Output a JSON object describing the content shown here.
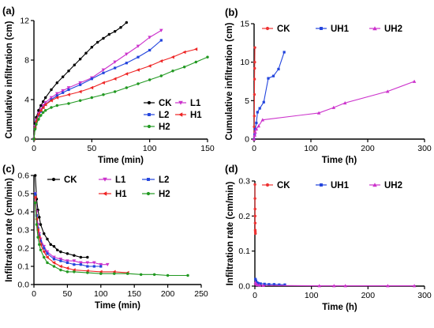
{
  "chart_data": [
    {
      "panel": "(a)",
      "type": "line",
      "xlabel": "Time (min)",
      "ylabel": "Cumulative infiltration (cm)",
      "xlim": [
        0,
        150
      ],
      "ylim": [
        0,
        12
      ],
      "xticks": [
        0,
        50,
        100,
        150
      ],
      "yticks": [
        0,
        4,
        8,
        12
      ],
      "legend": {
        "placement": "bottom-right",
        "columns": 2
      },
      "series": [
        {
          "name": "CK",
          "color": "#000000",
          "marker": "circle",
          "x": [
            0,
            1,
            2,
            4,
            6,
            8,
            10,
            15,
            20,
            25,
            30,
            35,
            40,
            45,
            50,
            55,
            60,
            65,
            70,
            75,
            80
          ],
          "y": [
            0,
            1.6,
            2.2,
            2.9,
            3.4,
            3.8,
            4.2,
            5.0,
            5.7,
            6.3,
            6.9,
            7.5,
            8.1,
            8.7,
            9.3,
            9.8,
            10.2,
            10.6,
            10.9,
            11.3,
            11.8
          ]
        },
        {
          "name": "L1",
          "color": "#cc33cc",
          "marker": "triangle-down",
          "x": [
            0,
            1,
            2,
            4,
            6,
            8,
            10,
            15,
            20,
            25,
            30,
            40,
            50,
            60,
            70,
            80,
            90,
            100,
            110
          ],
          "y": [
            0,
            1.3,
            1.9,
            2.6,
            3.0,
            3.4,
            3.7,
            4.2,
            4.6,
            4.9,
            5.2,
            5.7,
            6.2,
            7.0,
            7.8,
            8.6,
            9.4,
            10.3,
            11.0
          ]
        },
        {
          "name": "L2",
          "color": "#2244dd",
          "marker": "square",
          "x": [
            0,
            1,
            2,
            4,
            6,
            8,
            10,
            15,
            20,
            25,
            30,
            40,
            50,
            60,
            70,
            80,
            90,
            100,
            110
          ],
          "y": [
            0,
            1.2,
            1.8,
            2.4,
            2.8,
            3.2,
            3.5,
            4.0,
            4.4,
            4.7,
            5.0,
            5.5,
            6.1,
            6.7,
            7.2,
            7.7,
            8.3,
            9.0,
            10.0
          ]
        },
        {
          "name": "H1",
          "color": "#ee2222",
          "marker": "triangle-left",
          "x": [
            0,
            1,
            2,
            4,
            6,
            8,
            10,
            15,
            20,
            30,
            40,
            50,
            60,
            70,
            80,
            90,
            100,
            110,
            120,
            130,
            140
          ],
          "y": [
            0,
            1.2,
            1.8,
            2.5,
            2.9,
            3.2,
            3.5,
            3.9,
            4.2,
            4.5,
            4.8,
            5.2,
            5.7,
            6.1,
            6.6,
            7.0,
            7.4,
            7.9,
            8.3,
            8.8,
            9.1
          ]
        },
        {
          "name": "H2",
          "color": "#229922",
          "marker": "circle",
          "x": [
            0,
            1,
            2,
            4,
            6,
            8,
            10,
            15,
            20,
            30,
            40,
            50,
            60,
            70,
            80,
            90,
            100,
            110,
            120,
            130,
            140,
            150
          ],
          "y": [
            0,
            1.0,
            1.5,
            2.0,
            2.4,
            2.7,
            2.9,
            3.2,
            3.4,
            3.6,
            3.9,
            4.2,
            4.5,
            4.8,
            5.2,
            5.6,
            6.0,
            6.4,
            6.9,
            7.3,
            7.8,
            8.3
          ]
        }
      ]
    },
    {
      "panel": "(b)",
      "type": "line",
      "xlabel": "Time (h)",
      "ylabel": "Cumulative infiltration (cm)",
      "xlim": [
        0,
        300
      ],
      "ylim": [
        0,
        15
      ],
      "xticks": [
        0,
        100,
        200,
        300
      ],
      "yticks": [
        0,
        5,
        10,
        15
      ],
      "legend": {
        "placement": "top",
        "columns": 3
      },
      "series": [
        {
          "name": "CK",
          "color": "#ee3333",
          "marker": "circle",
          "x": [
            0,
            0.2,
            0.4,
            0.6,
            0.8,
            1.0,
            1.2,
            1.4
          ],
          "y": [
            0,
            1.6,
            3.0,
            5.8,
            7.8,
            9.2,
            10.0,
            11.9
          ]
        },
        {
          "name": "UH1",
          "color": "#2244dd",
          "marker": "square",
          "x": [
            0,
            1,
            2,
            4,
            6,
            10,
            17,
            25,
            34,
            43,
            53
          ],
          "y": [
            0,
            0.6,
            1.3,
            2.1,
            3.5,
            4.0,
            4.8,
            7.9,
            8.2,
            9.1,
            11.3
          ]
        },
        {
          "name": "UH2",
          "color": "#cc33cc",
          "marker": "triangle-up",
          "x": [
            0,
            1,
            2,
            4,
            8,
            15,
            114,
            140,
            160,
            235,
            282
          ],
          "y": [
            0,
            0.5,
            0.9,
            1.3,
            1.7,
            2.5,
            3.4,
            4.1,
            4.7,
            6.2,
            7.5
          ]
        }
      ]
    },
    {
      "panel": "(c)",
      "type": "line",
      "xlabel": "Time (min)",
      "ylabel": "Infiltration rate (cm/min)",
      "xlim": [
        0,
        250
      ],
      "ylim": [
        0,
        0.6
      ],
      "xticks": [
        0,
        50,
        100,
        150,
        200,
        250
      ],
      "yticks": [
        0.0,
        0.1,
        0.2,
        0.3,
        0.4,
        0.5,
        0.6
      ],
      "legend": {
        "placement": "top-right",
        "columns": 2
      },
      "series": [
        {
          "name": "CK",
          "color": "#000000",
          "marker": "circle",
          "x": [
            2,
            4,
            6,
            8,
            10,
            15,
            20,
            25,
            30,
            35,
            40,
            50,
            60,
            70,
            80
          ],
          "y": [
            0.6,
            0.47,
            0.41,
            0.37,
            0.33,
            0.28,
            0.25,
            0.22,
            0.21,
            0.19,
            0.18,
            0.17,
            0.16,
            0.15,
            0.15
          ]
        },
        {
          "name": "L1",
          "color": "#cc33cc",
          "marker": "triangle-down",
          "x": [
            2,
            4,
            6,
            8,
            10,
            15,
            20,
            30,
            40,
            50,
            60,
            70,
            80,
            90,
            100,
            110
          ],
          "y": [
            0.5,
            0.4,
            0.33,
            0.28,
            0.25,
            0.21,
            0.18,
            0.15,
            0.14,
            0.13,
            0.13,
            0.12,
            0.12,
            0.12,
            0.11,
            0.11
          ]
        },
        {
          "name": "L2",
          "color": "#2244dd",
          "marker": "square",
          "x": [
            2,
            4,
            6,
            8,
            10,
            15,
            20,
            30,
            40,
            50,
            60,
            70,
            80,
            90,
            100
          ],
          "y": [
            0.5,
            0.38,
            0.31,
            0.27,
            0.24,
            0.2,
            0.17,
            0.14,
            0.13,
            0.12,
            0.11,
            0.11,
            0.1,
            0.1,
            0.1
          ]
        },
        {
          "name": "H1",
          "color": "#ee2222",
          "marker": "triangle-left",
          "x": [
            2,
            4,
            6,
            8,
            10,
            15,
            20,
            30,
            40,
            50,
            60,
            80,
            100,
            120,
            140
          ],
          "y": [
            0.48,
            0.36,
            0.3,
            0.26,
            0.22,
            0.18,
            0.15,
            0.12,
            0.1,
            0.09,
            0.08,
            0.075,
            0.07,
            0.07,
            0.065
          ]
        },
        {
          "name": "H2",
          "color": "#229922",
          "marker": "circle",
          "x": [
            2,
            4,
            6,
            8,
            10,
            15,
            20,
            30,
            40,
            50,
            60,
            80,
            100,
            120,
            140,
            160,
            180,
            200,
            230
          ],
          "y": [
            0.45,
            0.33,
            0.26,
            0.22,
            0.19,
            0.15,
            0.12,
            0.1,
            0.08,
            0.07,
            0.07,
            0.065,
            0.06,
            0.06,
            0.06,
            0.055,
            0.055,
            0.05,
            0.05
          ]
        }
      ]
    },
    {
      "panel": "(d)",
      "type": "line",
      "xlabel": "Time (h)",
      "ylabel": "Infiltration rate (cm/min)",
      "xlim": [
        0,
        300
      ],
      "ylim": [
        0,
        0.3
      ],
      "xticks": [
        0,
        100,
        200,
        300
      ],
      "yticks": [
        0.0,
        0.1,
        0.2,
        0.3
      ],
      "legend": {
        "placement": "top",
        "columns": 3
      },
      "series": [
        {
          "name": "CK",
          "color": "#ee3333",
          "marker": "circle",
          "x": [
            0.1,
            0.2,
            0.3,
            0.4,
            0.5,
            0.6,
            0.8,
            1.0
          ],
          "y": [
            0.29,
            0.25,
            0.22,
            0.2,
            0.18,
            0.16,
            0.155,
            0.15
          ]
        },
        {
          "name": "UH1",
          "color": "#2244dd",
          "marker": "square",
          "x": [
            1,
            2,
            4,
            6,
            10,
            17,
            25,
            34,
            43,
            53
          ],
          "y": [
            0.02,
            0.015,
            0.01,
            0.008,
            0.007,
            0.006,
            0.005,
            0.005,
            0.004,
            0.004
          ]
        },
        {
          "name": "UH2",
          "color": "#cc33cc",
          "marker": "triangle-up",
          "x": [
            1,
            2,
            4,
            8,
            15,
            114,
            140,
            160,
            235,
            282
          ],
          "y": [
            0.01,
            0.006,
            0.004,
            0.003,
            0.002,
            0.001,
            0.001,
            0.001,
            0.001,
            0.001
          ]
        }
      ]
    }
  ]
}
